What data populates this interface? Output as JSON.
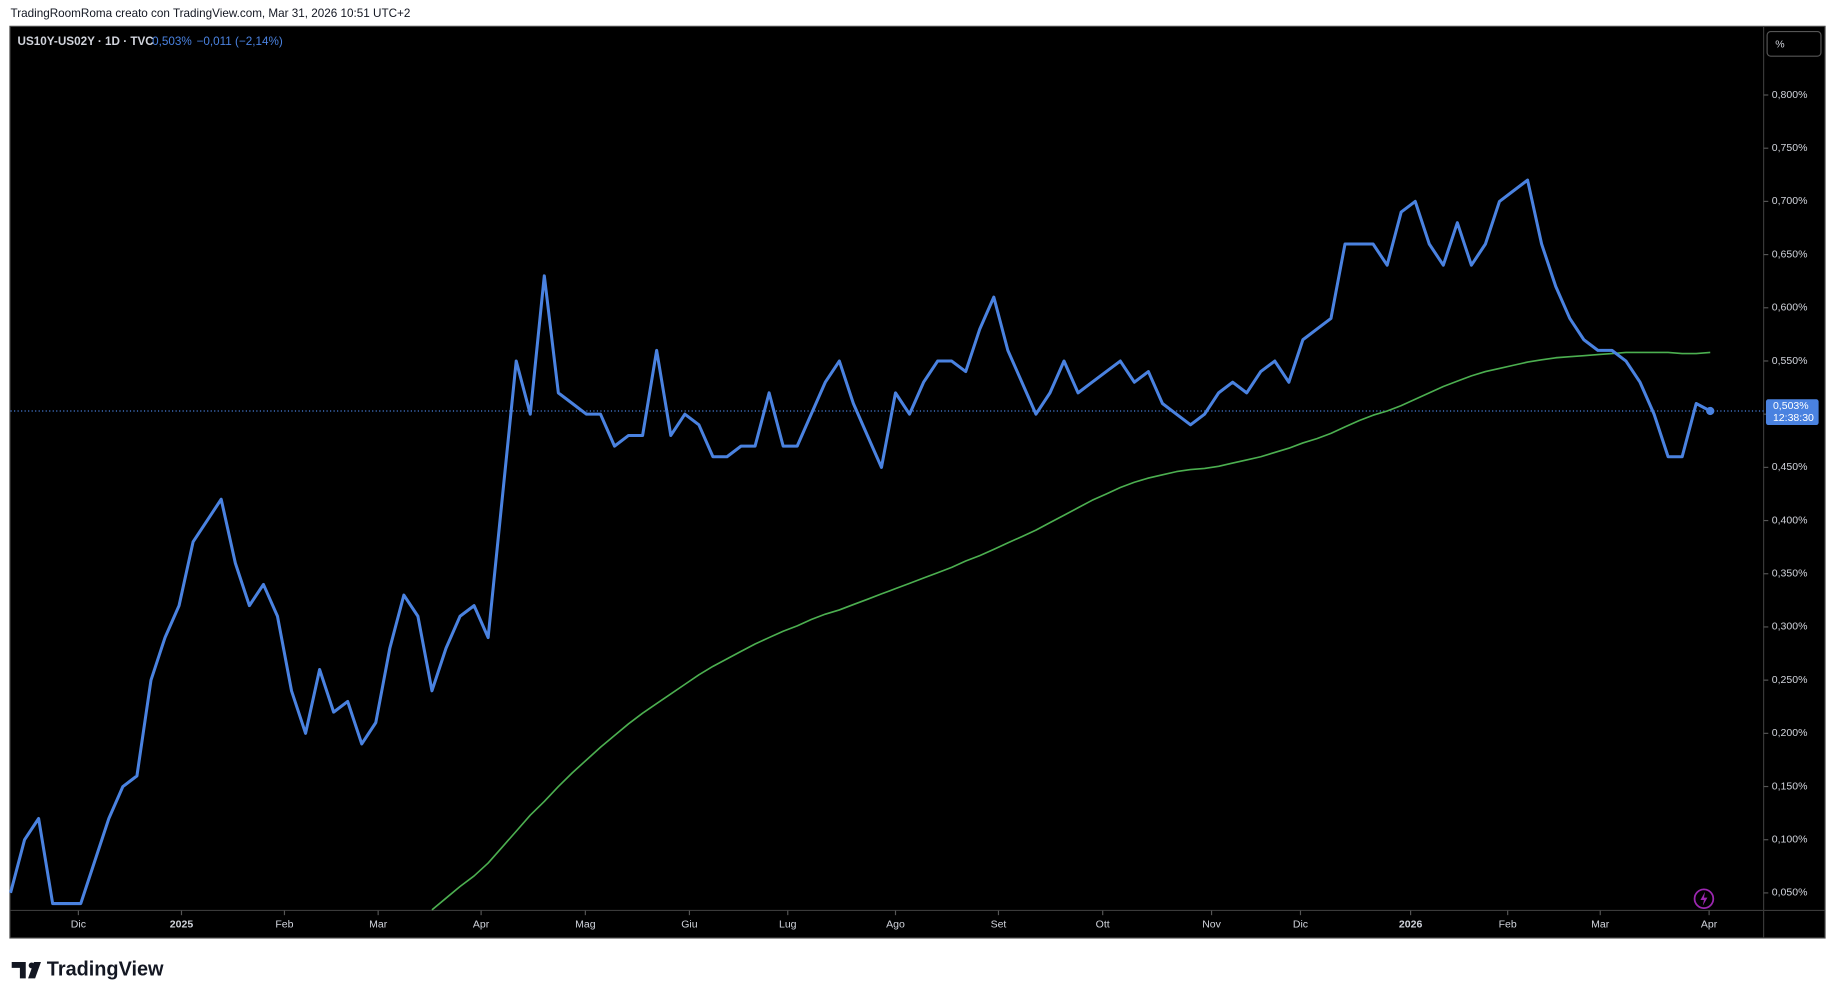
{
  "header": {
    "attribution": "TradingRoomRoma creato con TradingView.com, Mar 31, 2026 10:51 UTC+2",
    "logo": "TradingView"
  },
  "legend": {
    "symbol": "US10Y-US02Y · 1D · TVC",
    "price": "0,503%",
    "change": "−0,011 (−2,14%)"
  },
  "scale_button": "%",
  "price_tag": {
    "price": "0,503%",
    "countdown": "12:38:30"
  },
  "chart_data": {
    "type": "line",
    "last_value": 0.503,
    "xlim": [
      0,
      124.8
    ],
    "xticks": [
      {
        "value": 4.83,
        "label": "Dic"
      },
      {
        "value": 12.17,
        "label": "2025"
      },
      {
        "value": 19.5,
        "label": "Feb"
      },
      {
        "value": 26.17,
        "label": "Mar"
      },
      {
        "value": 33.5,
        "label": "Apr"
      },
      {
        "value": 40.92,
        "label": "Mag"
      },
      {
        "value": 48.33,
        "label": "Giu"
      },
      {
        "value": 55.33,
        "label": "Lug"
      },
      {
        "value": 63,
        "label": "Ago"
      },
      {
        "value": 70.33,
        "label": "Set"
      },
      {
        "value": 77.75,
        "label": "Ott"
      },
      {
        "value": 85.5,
        "label": "Nov"
      },
      {
        "value": 91.83,
        "label": "Dic"
      },
      {
        "value": 99.67,
        "label": "2026"
      },
      {
        "value": 106.58,
        "label": "Feb"
      },
      {
        "value": 113.17,
        "label": "Mar"
      },
      {
        "value": 120.92,
        "label": "Apr"
      }
    ],
    "ylim": [
      0.0335,
      0.864
    ],
    "yticks": [
      {
        "value": 0.05,
        "label": "0,050%"
      },
      {
        "value": 0.1,
        "label": "0,100%"
      },
      {
        "value": 0.15,
        "label": "0,150%"
      },
      {
        "value": 0.2,
        "label": "0,200%"
      },
      {
        "value": 0.25,
        "label": "0,250%"
      },
      {
        "value": 0.3,
        "label": "0,300%"
      },
      {
        "value": 0.35,
        "label": "0,350%"
      },
      {
        "value": 0.4,
        "label": "0,400%"
      },
      {
        "value": 0.45,
        "label": "0,450%"
      },
      {
        "value": 0.5,
        "label": "0,500%"
      },
      {
        "value": 0.55,
        "label": "0,550%"
      },
      {
        "value": 0.6,
        "label": "0,600%"
      },
      {
        "value": 0.65,
        "label": "0,650%"
      },
      {
        "value": 0.7,
        "label": "0,700%"
      },
      {
        "value": 0.75,
        "label": "0,750%"
      },
      {
        "value": 0.8,
        "label": "0,800%"
      }
    ],
    "series": [
      {
        "color": "#4a82e0",
        "values": [
          0.05,
          0.1,
          0.12,
          0.04,
          0.04,
          0.04,
          0.08,
          0.12,
          0.15,
          0.16,
          0.25,
          0.29,
          0.32,
          0.38,
          0.4,
          0.42,
          0.36,
          0.32,
          0.34,
          0.31,
          0.24,
          0.2,
          0.26,
          0.22,
          0.23,
          0.19,
          0.21,
          0.28,
          0.33,
          0.31,
          0.24,
          0.28,
          0.31,
          0.32,
          0.29,
          0.42,
          0.55,
          0.5,
          0.63,
          0.52,
          0.51,
          0.5,
          0.5,
          0.47,
          0.48,
          0.48,
          0.56,
          0.48,
          0.5,
          0.49,
          0.46,
          0.46,
          0.47,
          0.47,
          0.52,
          0.47,
          0.47,
          0.5,
          0.53,
          0.55,
          0.51,
          0.48,
          0.45,
          0.52,
          0.5,
          0.53,
          0.55,
          0.55,
          0.54,
          0.58,
          0.61,
          0.56,
          0.53,
          0.5,
          0.52,
          0.55,
          0.52,
          0.53,
          0.54,
          0.55,
          0.53,
          0.54,
          0.51,
          0.5,
          0.49,
          0.5,
          0.52,
          0.53,
          0.52,
          0.54,
          0.55,
          0.53,
          0.57,
          0.58,
          0.59,
          0.66,
          0.66,
          0.66,
          0.64,
          0.69,
          0.7,
          0.66,
          0.64,
          0.68,
          0.64,
          0.66,
          0.7,
          0.71,
          0.72,
          0.66,
          0.62,
          0.59,
          0.57,
          0.56,
          0.56,
          0.55,
          0.53,
          0.5,
          0.46,
          0.46,
          0.51,
          0.503
        ]
      },
      {
        "color": "#4caf50",
        "values": [
          null,
          null,
          null,
          null,
          null,
          null,
          null,
          null,
          null,
          null,
          null,
          null,
          null,
          null,
          null,
          null,
          null,
          null,
          null,
          null,
          null,
          null,
          null,
          null,
          null,
          null,
          null,
          null,
          null,
          null,
          0.034,
          0.045,
          0.056,
          0.066,
          0.078,
          0.093,
          0.108,
          0.123,
          0.136,
          0.15,
          0.163,
          0.175,
          0.187,
          0.198,
          0.209,
          0.219,
          0.228,
          0.237,
          0.246,
          0.255,
          0.263,
          0.27,
          0.277,
          0.284,
          0.29,
          0.296,
          0.301,
          0.307,
          0.312,
          0.316,
          0.321,
          0.326,
          0.331,
          0.336,
          0.341,
          0.346,
          0.351,
          0.356,
          0.362,
          0.367,
          0.373,
          0.379,
          0.385,
          0.391,
          0.398,
          0.405,
          0.412,
          0.419,
          0.425,
          0.431,
          0.436,
          0.44,
          0.443,
          0.446,
          0.448,
          0.449,
          0.451,
          0.454,
          0.457,
          0.46,
          0.464,
          0.468,
          0.473,
          0.477,
          0.482,
          0.488,
          0.494,
          0.499,
          0.503,
          0.508,
          0.514,
          0.52,
          0.526,
          0.531,
          0.536,
          0.54,
          0.543,
          0.546,
          0.549,
          0.551,
          0.553,
          0.554,
          0.555,
          0.556,
          0.557,
          0.558,
          0.558,
          0.558,
          0.558,
          0.557,
          0.557,
          0.558
        ]
      }
    ]
  }
}
